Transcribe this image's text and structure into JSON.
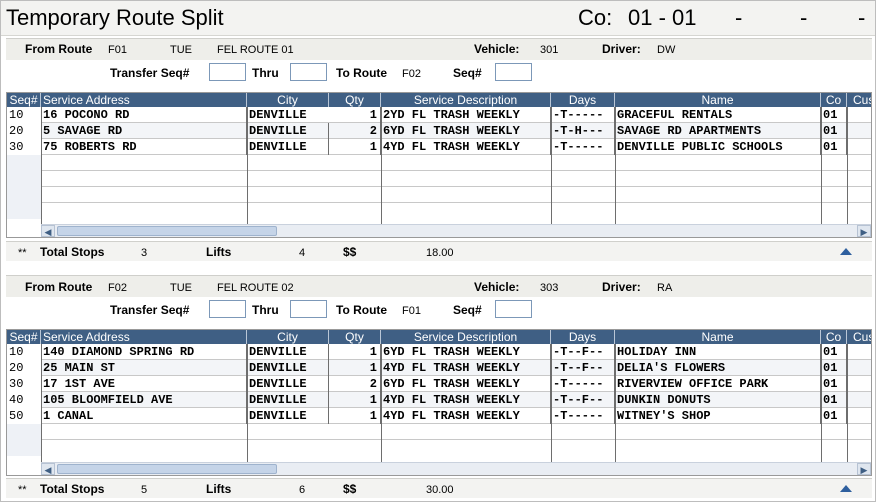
{
  "header": {
    "title": "Temporary Route Split",
    "co_label": "Co:",
    "co_value": "01 - 01",
    "dashes": [
      "-",
      "-",
      "-"
    ]
  },
  "labels": {
    "from_route": "From Route",
    "vehicle": "Vehicle:",
    "driver": "Driver:",
    "transfer_seq": "Transfer Seq#",
    "thru": "Thru",
    "to_route": "To Route",
    "seq": "Seq#",
    "total_stops": "Total Stops",
    "lifts": "Lifts",
    "dollars": "$$",
    "totals_marker": "**"
  },
  "columns": [
    "Seq#",
    "Service Address",
    "City",
    "Qty",
    "Service Description",
    "Days",
    "Name",
    "Co",
    "Cus"
  ],
  "colors": {
    "grid_header": "#3f5f84",
    "scroll_arrow": "#2e5f9e"
  },
  "routes": [
    {
      "route": "F01",
      "day": "TUE",
      "route_name": "FEL ROUTE 01",
      "vehicle": "301",
      "driver": "DW",
      "transfer_seq": "",
      "thru": "",
      "to_route": "F02",
      "seq": "",
      "rows": [
        {
          "seq": "10",
          "address": "16 POCONO RD",
          "city": "DENVILLE",
          "qty": "1",
          "description": "2YD FL TRASH WEEKLY",
          "days": "-T-----",
          "name": "GRACEFUL RENTALS",
          "co": "01"
        },
        {
          "seq": "20",
          "address": "5 SAVAGE RD",
          "city": "DENVILLE",
          "qty": "2",
          "description": "6YD FL TRASH WEEKLY",
          "days": "-T-H---",
          "name": "SAVAGE RD APARTMENTS",
          "co": "01"
        },
        {
          "seq": "30",
          "address": "75 ROBERTS RD",
          "city": "DENVILLE",
          "qty": "1",
          "description": "4YD FL TRASH WEEKLY",
          "days": "-T-----",
          "name": "DENVILLE PUBLIC SCHOOLS",
          "co": "01"
        }
      ],
      "totals": {
        "stops": "3",
        "lifts": "4",
        "dollars": "18.00"
      }
    },
    {
      "route": "F02",
      "day": "TUE",
      "route_name": "FEL ROUTE 02",
      "vehicle": "303",
      "driver": "RA",
      "transfer_seq": "",
      "thru": "",
      "to_route": "F01",
      "seq": "",
      "rows": [
        {
          "seq": "10",
          "address": "140 DIAMOND SPRING RD",
          "city": "DENVILLE",
          "qty": "1",
          "description": "6YD FL TRASH WEEKLY",
          "days": "-T--F--",
          "name": "HOLIDAY INN",
          "co": "01"
        },
        {
          "seq": "20",
          "address": "25 MAIN ST",
          "city": "DENVILLE",
          "qty": "1",
          "description": "4YD FL TRASH WEEKLY",
          "days": "-T--F--",
          "name": "DELIA'S FLOWERS",
          "co": "01"
        },
        {
          "seq": "30",
          "address": "17 1ST AVE",
          "city": "DENVILLE",
          "qty": "2",
          "description": "6YD FL TRASH WEEKLY",
          "days": "-T-----",
          "name": "RIVERVIEW OFFICE PARK",
          "co": "01"
        },
        {
          "seq": "40",
          "address": "105 BLOOMFIELD AVE",
          "city": "DENVILLE",
          "qty": "1",
          "description": "4YD FL TRASH WEEKLY",
          "days": "-T--F--",
          "name": "DUNKIN DONUTS",
          "co": "01"
        },
        {
          "seq": "50",
          "address": "1 CANAL",
          "city": "DENVILLE",
          "qty": "1",
          "description": "4YD FL TRASH WEEKLY",
          "days": "-T-----",
          "name": "WITNEY'S SHOP",
          "co": "01"
        }
      ],
      "totals": {
        "stops": "5",
        "lifts": "6",
        "dollars": "30.00"
      }
    }
  ]
}
